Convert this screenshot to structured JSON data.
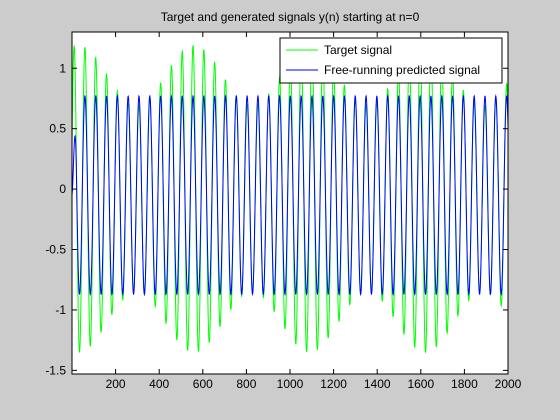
{
  "chart_data": {
    "type": "line",
    "title": "Target and generated signals y(n) starting at n=0",
    "xlabel": "",
    "ylabel": "",
    "xlim": [
      0,
      2000
    ],
    "ylim": [
      -1.53,
      1.3
    ],
    "xticks": [
      200,
      400,
      600,
      800,
      1000,
      1200,
      1400,
      1600,
      1800,
      2000
    ],
    "yticks": [
      -1.5,
      -1,
      -0.5,
      0,
      0.5,
      1
    ],
    "ytick_labels": [
      "-1.5",
      "-1",
      "-0.5",
      "0",
      "0.5",
      "1"
    ],
    "grid": false,
    "legend_position": "top-right",
    "series": [
      {
        "name": "Target signal",
        "color": "#00ff00",
        "description": "two-frequency oscillation, period ~50 samples, amplitude modulated between ~0.85 and ~1.5",
        "period": 49.6,
        "beat_amplitude": 0.5,
        "beat_period": 530,
        "mean_amplitude": 1.02
      },
      {
        "name": "Free-running predicted signal",
        "color": "#0000ff",
        "description": "steady oscillation, period ~50 samples, amplitude ~0.85",
        "period": 49.6,
        "amplitude": 0.82,
        "offset": -0.05
      }
    ]
  }
}
